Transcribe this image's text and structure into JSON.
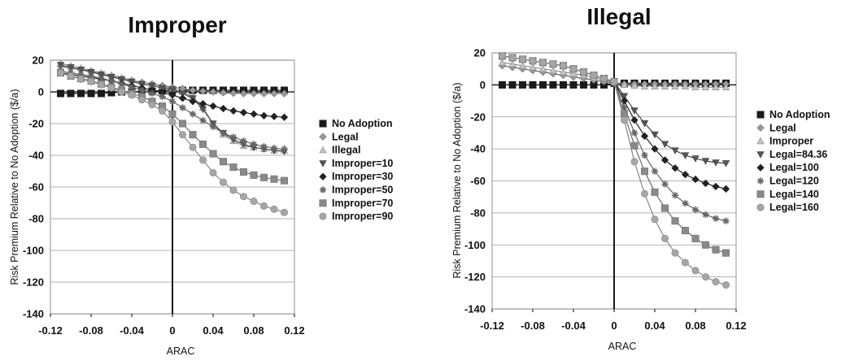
{
  "chart_data": [
    {
      "type": "line",
      "title": "Improper",
      "xlabel": "ARAC",
      "ylabel": "Risk Premium Relative to No Adoption ($/a)",
      "xlim": [
        -0.12,
        0.12
      ],
      "ylim": [
        -140,
        20
      ],
      "xticks": [
        "-0.12",
        "-0.08",
        "-0.04",
        "0",
        "0.04",
        "0.08",
        "0.12"
      ],
      "yticks": [
        "20",
        "0",
        "-20",
        "-40",
        "-60",
        "-80",
        "-100",
        "-120",
        "-140"
      ],
      "grid": "horizontal",
      "legend_position": "right",
      "x": [
        -0.11,
        -0.1,
        -0.09,
        -0.08,
        -0.07,
        -0.06,
        -0.05,
        -0.04,
        -0.03,
        -0.02,
        -0.01,
        0,
        0.01,
        0.02,
        0.03,
        0.04,
        0.05,
        0.06,
        0.07,
        0.08,
        0.09,
        0.1,
        0.11
      ],
      "series": [
        {
          "name": "No Adoption",
          "marker": "square",
          "values": [
            -1,
            -1,
            -1,
            -1,
            -1,
            -0.5,
            0,
            0,
            0.3,
            0.5,
            0.8,
            1,
            1,
            1,
            1,
            1,
            1,
            1,
            1,
            1,
            1,
            1,
            1
          ]
        },
        {
          "name": "Legal",
          "marker": "diamond",
          "values": [
            16,
            15,
            14,
            13,
            11,
            10,
            8,
            7,
            6,
            5,
            4,
            3,
            2,
            1,
            0.5,
            0,
            -0.5,
            -0.8,
            -1,
            -1,
            -1,
            -1,
            -1
          ]
        },
        {
          "name": "Illegal",
          "marker": "triangle",
          "values": [
            18,
            16.5,
            15,
            13.5,
            12,
            10.5,
            9,
            7.5,
            6,
            5,
            3.5,
            2,
            0,
            -3,
            -10,
            -20,
            -27,
            -31,
            -34,
            -35,
            -36,
            -37,
            -37
          ]
        },
        {
          "name": "Improper=10",
          "marker": "triangle-down",
          "values": [
            17,
            15.5,
            14,
            12.5,
            11,
            9.5,
            8,
            6.5,
            5,
            4,
            2.5,
            1.5,
            -1,
            -4,
            -11,
            -20,
            -26,
            -30,
            -33,
            -35,
            -36,
            -37,
            -37.5
          ]
        },
        {
          "name": "Improper=30",
          "marker": "diamond",
          "values": [
            12,
            11,
            10,
            9,
            8,
            7,
            5.5,
            4,
            2.5,
            1,
            -0.5,
            -2,
            -4,
            -6,
            -7.5,
            -9,
            -10.5,
            -12,
            -13,
            -14,
            -15,
            -15.5,
            -16
          ]
        },
        {
          "name": "Improper=50",
          "marker": "asterisk",
          "values": [
            13,
            12,
            11,
            10,
            8.5,
            7,
            5,
            3,
            1,
            -1,
            -3,
            -6,
            -10,
            -14,
            -18,
            -22,
            -26,
            -28.5,
            -31,
            -33,
            -34.5,
            -35.5,
            -36
          ]
        },
        {
          "name": "Improper=70",
          "marker": "square",
          "values": [
            12,
            10,
            8.5,
            7,
            5,
            3,
            1,
            -1,
            -3,
            -6,
            -9,
            -14,
            -20,
            -27,
            -33,
            -39,
            -44,
            -47.5,
            -50.5,
            -52.5,
            -54,
            -55,
            -56
          ]
        },
        {
          "name": "Improper=90",
          "marker": "circle",
          "values": [
            12,
            10,
            8,
            6.5,
            4.5,
            2.5,
            0,
            -2,
            -5,
            -8,
            -12,
            -19,
            -27,
            -35,
            -43,
            -51,
            -57,
            -62,
            -66,
            -69,
            -72,
            -74,
            -76
          ]
        }
      ]
    },
    {
      "type": "line",
      "title": "Illegal",
      "xlabel": "ARAC",
      "ylabel": "Risk Premium Relative to No Adoption ($/a)",
      "xlim": [
        -0.12,
        0.12
      ],
      "ylim": [
        -140,
        20
      ],
      "xticks": [
        "-0.12",
        "-0.08",
        "-0.04",
        "0",
        "0.04",
        "0.08",
        "0.12"
      ],
      "yticks": [
        "20",
        "0",
        "-20",
        "-40",
        "-60",
        "-80",
        "-100",
        "-120",
        "-140"
      ],
      "grid": "horizontal",
      "legend_position": "right",
      "x": [
        -0.11,
        -0.1,
        -0.09,
        -0.08,
        -0.07,
        -0.06,
        -0.05,
        -0.04,
        -0.03,
        -0.02,
        -0.01,
        0,
        0.01,
        0.02,
        0.03,
        0.04,
        0.05,
        0.06,
        0.07,
        0.08,
        0.09,
        0.1,
        0.11
      ],
      "series": [
        {
          "name": "No Adoption",
          "marker": "square",
          "values": [
            0,
            0,
            0,
            0,
            0,
            0,
            0,
            0,
            0,
            0,
            0,
            1,
            1,
            1,
            1,
            1,
            1,
            1,
            1,
            1,
            1,
            1,
            1
          ]
        },
        {
          "name": "Legal",
          "marker": "diamond",
          "values": [
            12,
            11,
            10,
            9,
            8,
            7,
            6,
            5,
            4,
            3,
            2,
            1,
            0.5,
            0.5,
            0.5,
            0.5,
            0.5,
            0.5,
            0.5,
            0.5,
            0.5,
            0.5,
            0.5
          ]
        },
        {
          "name": "Improper",
          "marker": "triangle",
          "values": [
            14,
            13,
            12,
            11,
            10,
            9,
            8,
            7,
            6,
            4.5,
            3,
            1.5,
            0,
            -0.5,
            -1,
            -1,
            -1,
            -1,
            -1,
            -1.5,
            -1.5,
            -1.5,
            -1.5
          ]
        },
        {
          "name": "Legal=84.36",
          "marker": "triangle-down",
          "values": [
            18,
            17,
            16,
            15,
            14,
            13,
            12,
            10,
            8,
            6,
            4,
            2,
            -7,
            -16,
            -24,
            -31,
            -37,
            -41,
            -44,
            -46,
            -47.5,
            -48.5,
            -49
          ]
        },
        {
          "name": "Legal=100",
          "marker": "diamond",
          "values": [
            18,
            17,
            16,
            15,
            14,
            13,
            12,
            10,
            8,
            6,
            4,
            2,
            -10,
            -22,
            -32,
            -40,
            -47,
            -52,
            -56,
            -59,
            -61.5,
            -63.5,
            -65
          ]
        },
        {
          "name": "Legal=120",
          "marker": "asterisk",
          "values": [
            18,
            17,
            16,
            15,
            14,
            13,
            12,
            10,
            8,
            6,
            4,
            2,
            -14,
            -30,
            -44,
            -54,
            -62,
            -69,
            -74,
            -78,
            -81,
            -83.5,
            -85
          ]
        },
        {
          "name": "Legal=140",
          "marker": "square",
          "values": [
            18,
            17,
            16,
            15,
            14,
            13,
            12,
            10,
            8,
            6,
            4,
            2,
            -18,
            -38,
            -54,
            -67,
            -77,
            -85,
            -91,
            -96,
            -100,
            -103,
            -105
          ]
        },
        {
          "name": "Legal=160",
          "marker": "circle",
          "values": [
            18,
            17,
            16,
            15,
            14,
            13,
            12,
            10,
            8,
            6,
            4,
            2,
            -22,
            -48,
            -68,
            -84,
            -96,
            -105,
            -111,
            -116,
            -120,
            -123,
            -125
          ]
        }
      ]
    }
  ]
}
